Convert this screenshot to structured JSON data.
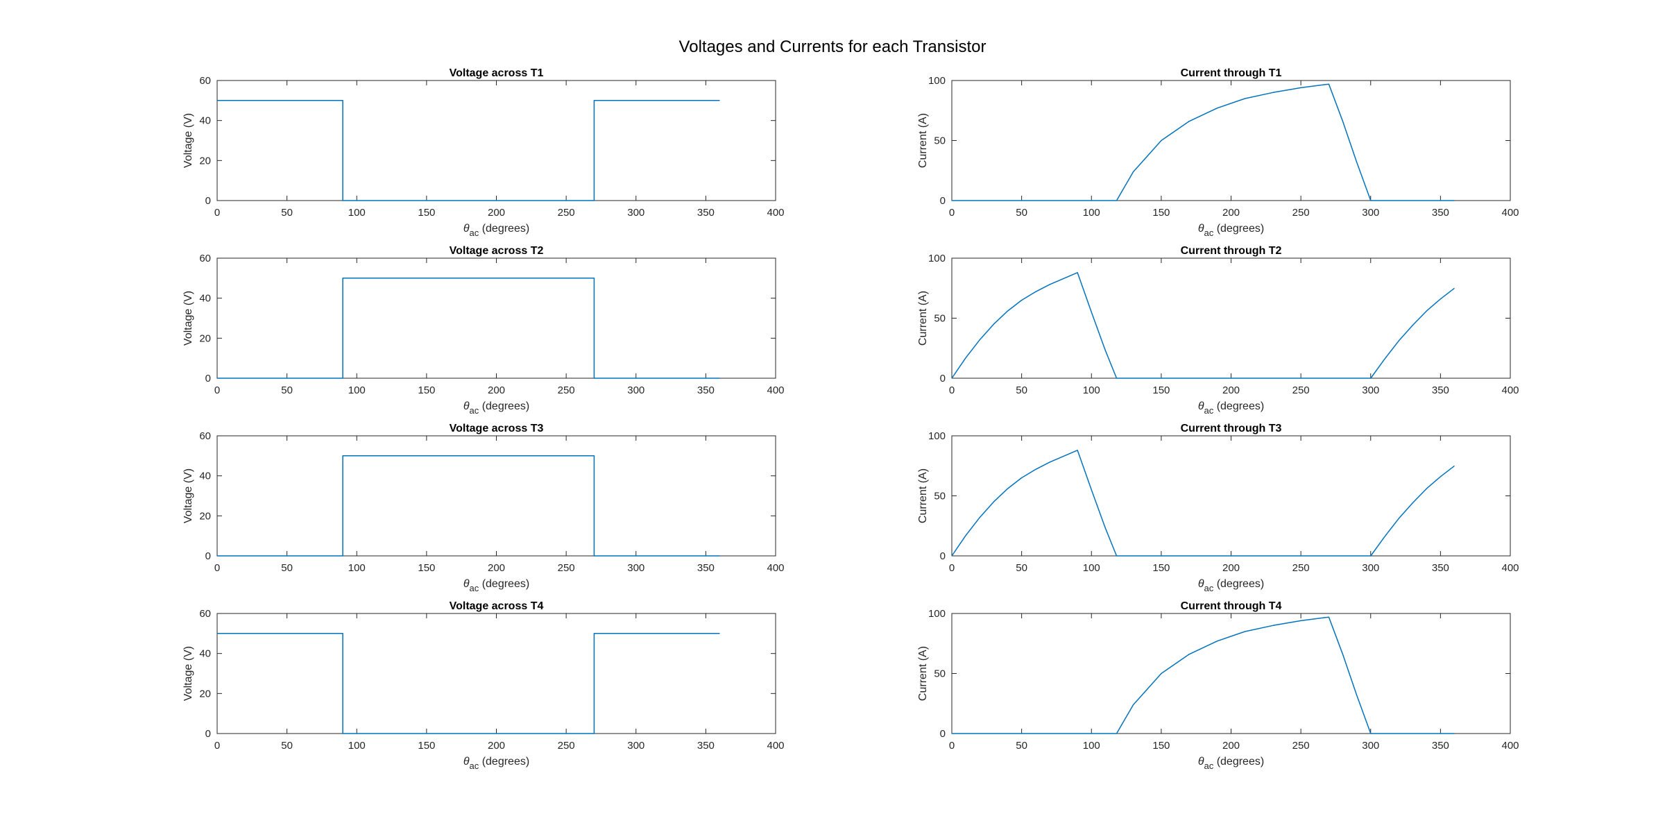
{
  "figure": {
    "title": "Voltages and Currents for each Transistor"
  },
  "colors": {
    "series": "#0072BD",
    "axes": "#262626"
  },
  "xlabel_symbol": "θ",
  "xlabel_subscript": "ac",
  "xlabel_units": " (degrees)",
  "chart_data": [
    {
      "type": "line",
      "title": "Voltage across T1",
      "xlabel": "θac (degrees)",
      "ylabel": "Voltage (V)",
      "xlim": [
        0,
        400
      ],
      "ylim": [
        0,
        60
      ],
      "xticks": [
        0,
        50,
        100,
        150,
        200,
        250,
        300,
        350,
        400
      ],
      "yticks": [
        0,
        20,
        40,
        60
      ],
      "series": [
        {
          "x": [
            0,
            90,
            90,
            270,
            270,
            360
          ],
          "y": [
            50,
            50,
            0,
            0,
            50,
            50
          ]
        }
      ]
    },
    {
      "type": "line",
      "title": "Current through T1",
      "xlabel": "θac (degrees)",
      "ylabel": "Current (A)",
      "xlim": [
        0,
        400
      ],
      "ylim": [
        0,
        100
      ],
      "xticks": [
        0,
        50,
        100,
        150,
        200,
        250,
        300,
        350,
        400
      ],
      "yticks": [
        0,
        50,
        100
      ],
      "series": [
        {
          "x": [
            0,
            118,
            130,
            150,
            170,
            190,
            210,
            230,
            250,
            270,
            280,
            290,
            300,
            360
          ],
          "y": [
            0,
            0,
            24,
            50,
            66,
            77,
            85,
            90,
            94,
            97,
            66,
            32,
            0,
            0
          ]
        }
      ]
    },
    {
      "type": "line",
      "title": "Voltage across T2",
      "xlabel": "θac (degrees)",
      "ylabel": "Voltage (V)",
      "xlim": [
        0,
        400
      ],
      "ylim": [
        0,
        60
      ],
      "xticks": [
        0,
        50,
        100,
        150,
        200,
        250,
        300,
        350,
        400
      ],
      "yticks": [
        0,
        20,
        40,
        60
      ],
      "series": [
        {
          "x": [
            0,
            90,
            90,
            270,
            270,
            360
          ],
          "y": [
            0,
            0,
            50,
            50,
            0,
            0
          ]
        }
      ]
    },
    {
      "type": "line",
      "title": "Current through T2",
      "xlabel": "θac (degrees)",
      "ylabel": "Current (A)",
      "xlim": [
        0,
        400
      ],
      "ylim": [
        0,
        100
      ],
      "xticks": [
        0,
        50,
        100,
        150,
        200,
        250,
        300,
        350,
        400
      ],
      "yticks": [
        0,
        50,
        100
      ],
      "series": [
        {
          "x": [
            0,
            10,
            20,
            30,
            40,
            50,
            60,
            70,
            80,
            90,
            100,
            110,
            118,
            300,
            310,
            320,
            330,
            340,
            350,
            360
          ],
          "y": [
            0,
            17,
            32,
            45,
            56,
            65,
            72,
            78,
            83,
            88,
            55,
            23,
            0,
            0,
            16,
            31,
            44,
            56,
            66,
            75
          ]
        }
      ]
    },
    {
      "type": "line",
      "title": "Voltage across T3",
      "xlabel": "θac (degrees)",
      "ylabel": "Voltage (V)",
      "xlim": [
        0,
        400
      ],
      "ylim": [
        0,
        60
      ],
      "xticks": [
        0,
        50,
        100,
        150,
        200,
        250,
        300,
        350,
        400
      ],
      "yticks": [
        0,
        20,
        40,
        60
      ],
      "series": [
        {
          "x": [
            0,
            90,
            90,
            270,
            270,
            360
          ],
          "y": [
            0,
            0,
            50,
            50,
            0,
            0
          ]
        }
      ]
    },
    {
      "type": "line",
      "title": "Current through T3",
      "xlabel": "θac (degrees)",
      "ylabel": "Current (A)",
      "xlim": [
        0,
        400
      ],
      "ylim": [
        0,
        100
      ],
      "xticks": [
        0,
        50,
        100,
        150,
        200,
        250,
        300,
        350,
        400
      ],
      "yticks": [
        0,
        50,
        100
      ],
      "series": [
        {
          "x": [
            0,
            10,
            20,
            30,
            40,
            50,
            60,
            70,
            80,
            90,
            100,
            110,
            118,
            300,
            310,
            320,
            330,
            340,
            350,
            360
          ],
          "y": [
            0,
            17,
            32,
            45,
            56,
            65,
            72,
            78,
            83,
            88,
            55,
            23,
            0,
            0,
            16,
            31,
            44,
            56,
            66,
            75
          ]
        }
      ]
    },
    {
      "type": "line",
      "title": "Voltage across T4",
      "xlabel": "θac (degrees)",
      "ylabel": "Voltage (V)",
      "xlim": [
        0,
        400
      ],
      "ylim": [
        0,
        60
      ],
      "xticks": [
        0,
        50,
        100,
        150,
        200,
        250,
        300,
        350,
        400
      ],
      "yticks": [
        0,
        20,
        40,
        60
      ],
      "series": [
        {
          "x": [
            0,
            90,
            90,
            270,
            270,
            360
          ],
          "y": [
            50,
            50,
            0,
            0,
            50,
            50
          ]
        }
      ]
    },
    {
      "type": "line",
      "title": "Current through T4",
      "xlabel": "θac (degrees)",
      "ylabel": "Current (A)",
      "xlim": [
        0,
        400
      ],
      "ylim": [
        0,
        100
      ],
      "xticks": [
        0,
        50,
        100,
        150,
        200,
        250,
        300,
        350,
        400
      ],
      "yticks": [
        0,
        50,
        100
      ],
      "series": [
        {
          "x": [
            0,
            118,
            130,
            150,
            170,
            190,
            210,
            230,
            250,
            270,
            280,
            290,
            300,
            360
          ],
          "y": [
            0,
            0,
            24,
            50,
            66,
            77,
            85,
            90,
            94,
            97,
            66,
            32,
            0,
            0
          ]
        }
      ]
    }
  ]
}
